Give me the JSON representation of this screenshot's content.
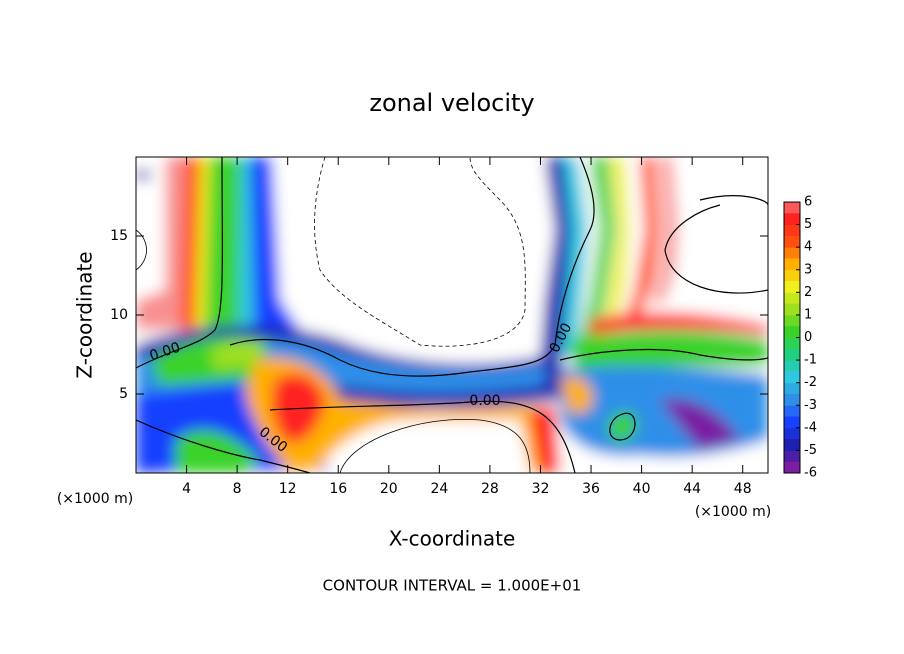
{
  "chart_data": {
    "type": "contour",
    "title": "zonal velocity",
    "x_label": "X-coordinate",
    "y_label": "Z-coordinate",
    "x_unit": "(×1000 m)",
    "y_unit": "(×1000 m)",
    "xlim": [
      0,
      50
    ],
    "ylim": [
      0,
      20
    ],
    "xticks": [
      4,
      8,
      12,
      16,
      20,
      24,
      28,
      32,
      36,
      40,
      44,
      48
    ],
    "yticks": [
      5,
      10,
      15
    ],
    "colorbar": {
      "ticks": [
        -6,
        -5,
        -4,
        -3,
        -2,
        -1,
        0,
        1,
        2,
        3,
        4,
        5,
        6
      ],
      "colors": [
        "#7a1fa2",
        "#2020b0",
        "#1840ff",
        "#2f8fe8",
        "#30c8e0",
        "#20d080",
        "#3ad22a",
        "#9ee020",
        "#f0f020",
        "#ffb000",
        "#ff5010",
        "#ff2020",
        "#f89090"
      ]
    },
    "contour_labels": [
      "0.00",
      "0.00",
      "0.00",
      "0.00"
    ],
    "footer": "CONTOUR INTERVAL = 1.000E+01"
  }
}
